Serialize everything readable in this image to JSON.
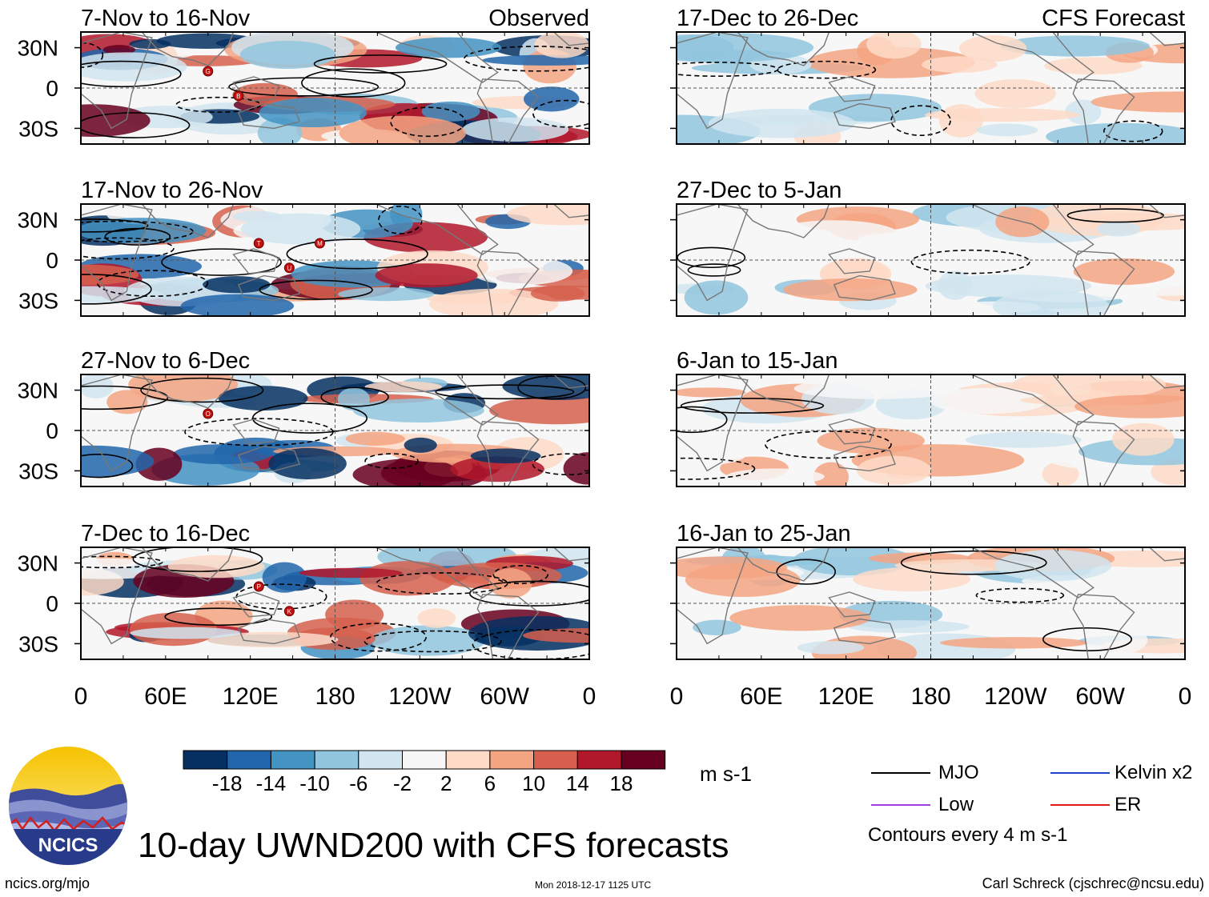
{
  "footer": {
    "title": "10-day UWND200 with CFS forecasts",
    "url": "ncics.org/mjo",
    "timestamp": "Mon 2018-12-17 1125 UTC",
    "author": "Carl Schreck (cjschrec@ncsu.edu)",
    "logo_text": "NCICS"
  },
  "legend": {
    "units": "m s-1",
    "contour_note": "Contours every 4 m s-1",
    "items": [
      {
        "label": "MJO",
        "color": "#000000"
      },
      {
        "label": "Kelvin x2",
        "color": "#1f3fd0"
      },
      {
        "label": "Low",
        "color": "#9b3fe0"
      },
      {
        "label": "ER",
        "color": "#e01818"
      }
    ]
  },
  "chart_data": {
    "type": "heatmap",
    "variable": "200-hPa zonal wind anomaly (10-day mean)",
    "column_titles": [
      "Observed",
      "CFS Forecast"
    ],
    "x_ticks": [
      "0",
      "60E",
      "120E",
      "180",
      "120W",
      "60W",
      "0"
    ],
    "y_ticks": [
      "30N",
      "0",
      "30S"
    ],
    "colorbar": {
      "ticks": [
        "-18",
        "-14",
        "-10",
        "-6",
        "-2",
        "2",
        "6",
        "10",
        "14",
        "18"
      ],
      "colors": [
        "#053061",
        "#2166ac",
        "#4393c3",
        "#92c5de",
        "#d1e5f0",
        "#f7f7f7",
        "#fddbc7",
        "#f4a582",
        "#d6604d",
        "#b2182b",
        "#67001f"
      ]
    },
    "panels": [
      {
        "period": "7-Nov to 16-Nov",
        "column": "Observed",
        "storms": [
          "G",
          "B"
        ]
      },
      {
        "period": "17-Nov to 26-Nov",
        "column": "Observed",
        "storms": [
          "T",
          "U",
          "M"
        ]
      },
      {
        "period": "27-Nov to 6-Dec",
        "column": "Observed",
        "storms": [
          "O"
        ]
      },
      {
        "period": "7-Dec to 16-Dec",
        "column": "Observed",
        "storms": [
          "P",
          "K"
        ]
      },
      {
        "period": "17-Dec to 26-Dec",
        "column": "CFS Forecast",
        "storms": []
      },
      {
        "period": "27-Dec to 5-Jan",
        "column": "CFS Forecast",
        "storms": []
      },
      {
        "period": "6-Jan to 15-Jan",
        "column": "CFS Forecast",
        "storms": []
      },
      {
        "period": "16-Jan to 25-Jan",
        "column": "CFS Forecast",
        "storms": []
      }
    ]
  }
}
